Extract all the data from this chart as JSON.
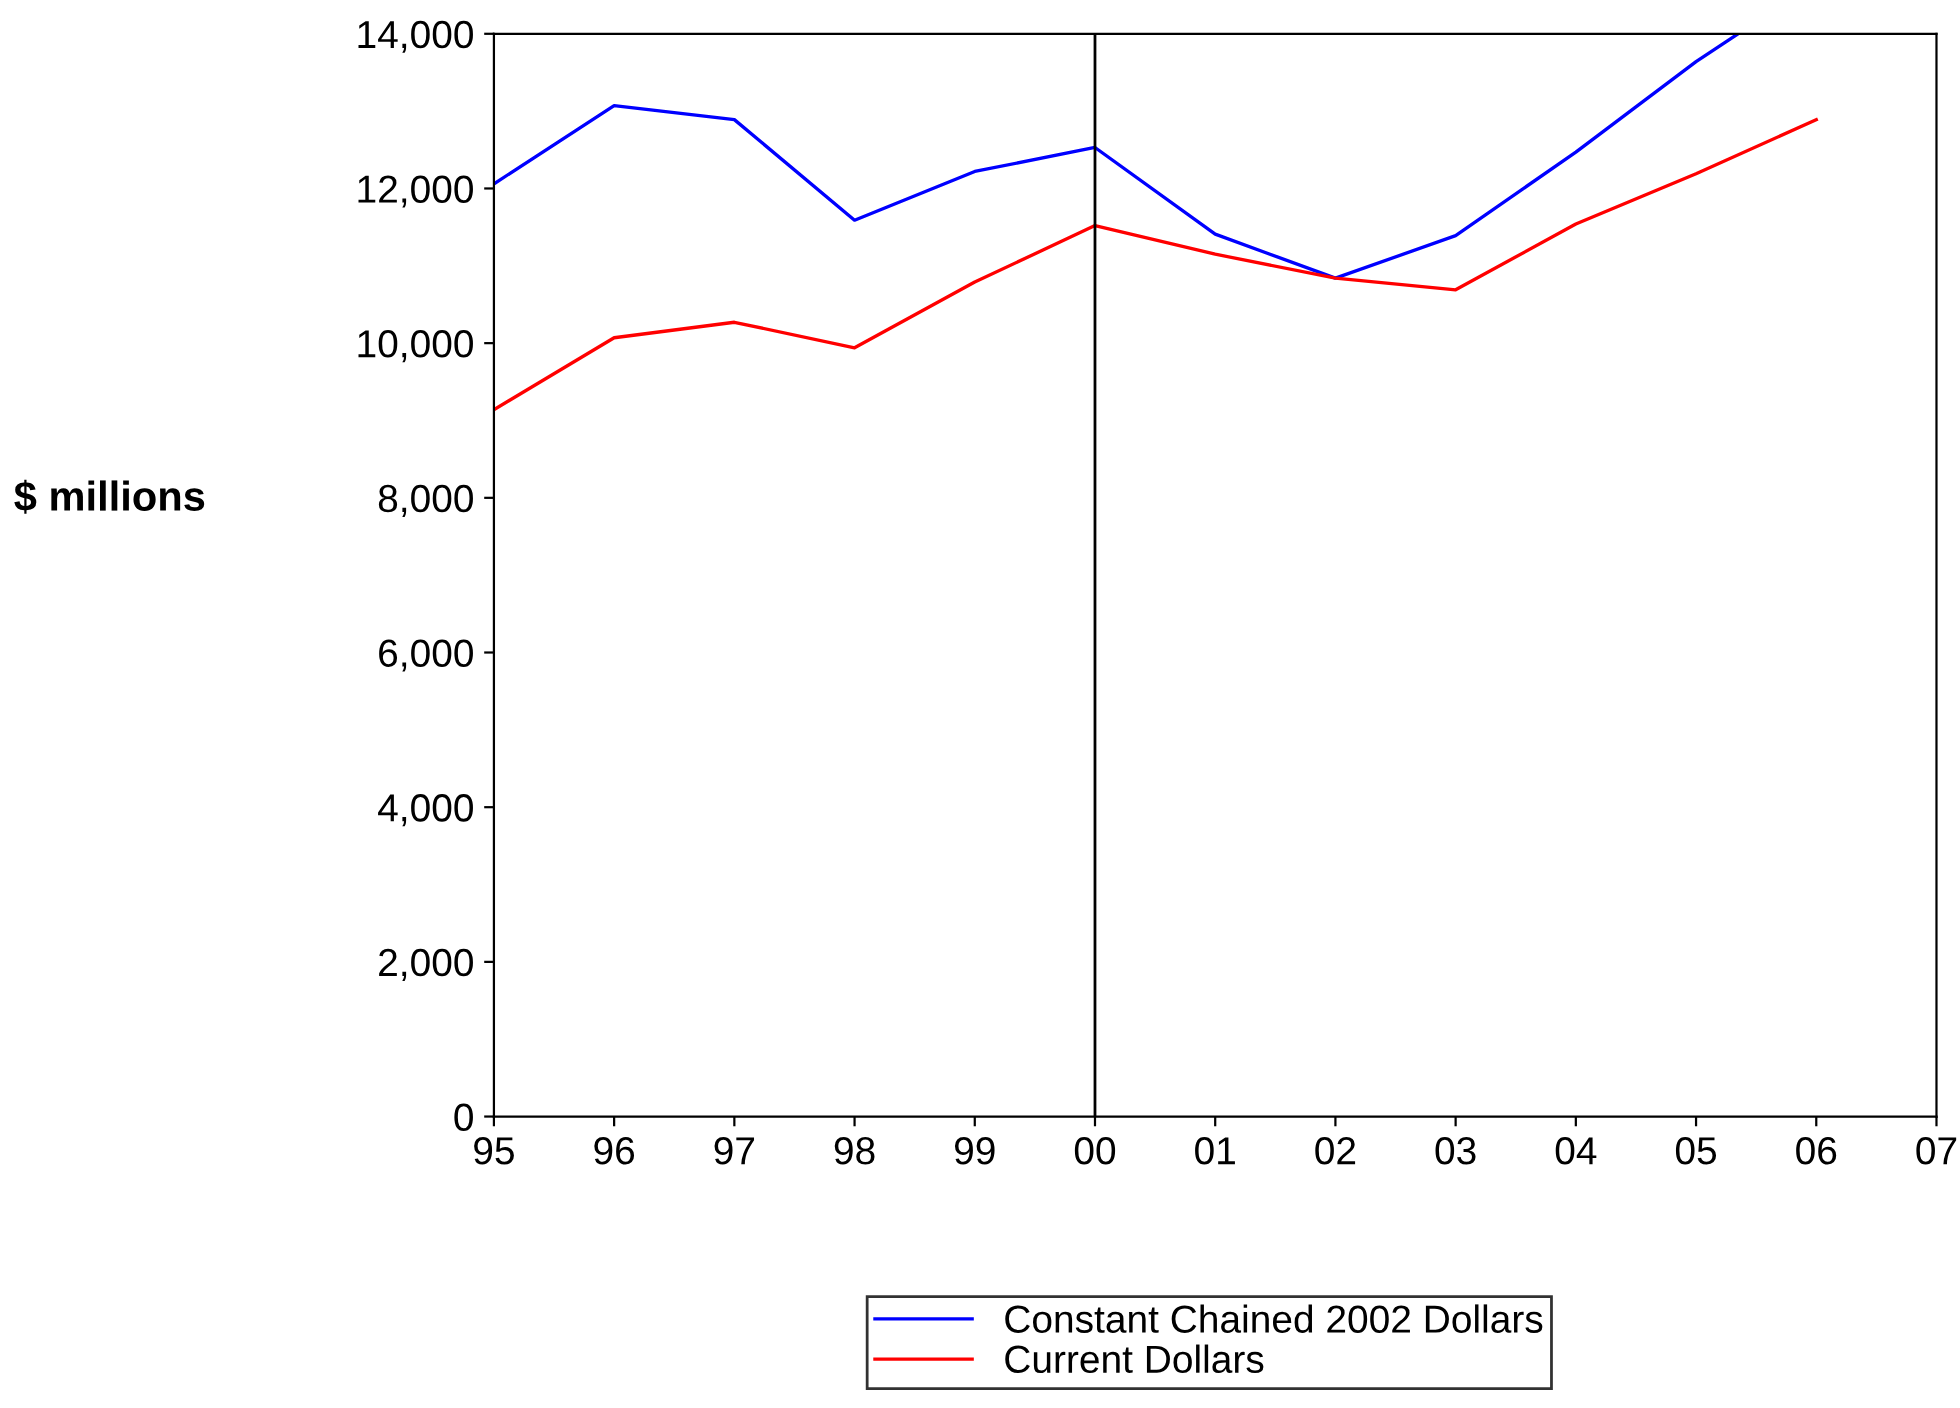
{
  "chart_data": {
    "type": "line",
    "ylabel": "$ millions",
    "x": [
      1995,
      1996,
      1997,
      1998,
      1999,
      2000,
      2001,
      2002,
      2003,
      2004,
      2005,
      2006
    ],
    "series": [
      {
        "name": "Constant Chained 2002 Dollars",
        "color": "#0000ff",
        "x": [
          1995,
          1996,
          1997,
          1998,
          1999,
          2000,
          2001,
          2002,
          2003,
          2004,
          2005,
          2005.35
        ],
        "values": [
          12060,
          13070,
          12890,
          11590,
          12220,
          12530,
          11410,
          10840,
          11390,
          12470,
          13640,
          14000
        ]
      },
      {
        "name": "Current Dollars",
        "color": "#ff0000",
        "values": [
          9140,
          10070,
          10270,
          9940,
          10790,
          11520,
          11150,
          10840,
          10690,
          11540,
          12190,
          12890
        ]
      }
    ],
    "xlim": [
      1995,
      2007
    ],
    "xticks": [
      {
        "value": 1995,
        "label": "95"
      },
      {
        "value": 1996,
        "label": "96"
      },
      {
        "value": 1997,
        "label": "97"
      },
      {
        "value": 1998,
        "label": "98"
      },
      {
        "value": 1999,
        "label": "99"
      },
      {
        "value": 2000,
        "label": "00"
      },
      {
        "value": 2001,
        "label": "01"
      },
      {
        "value": 2002,
        "label": "02"
      },
      {
        "value": 2003,
        "label": "03"
      },
      {
        "value": 2004,
        "label": "04"
      },
      {
        "value": 2005,
        "label": "05"
      },
      {
        "value": 2006,
        "label": "06"
      },
      {
        "value": 2007,
        "label": "07"
      }
    ],
    "ylim": [
      0,
      14000
    ],
    "yticks": [
      {
        "value": 0,
        "label": "0"
      },
      {
        "value": 2000,
        "label": "2,000"
      },
      {
        "value": 4000,
        "label": "4,000"
      },
      {
        "value": 6000,
        "label": "6,000"
      },
      {
        "value": 8000,
        "label": "8,000"
      },
      {
        "value": 10000,
        "label": "10,000"
      },
      {
        "value": 12000,
        "label": "12,000"
      },
      {
        "value": 14000,
        "label": "14,000"
      }
    ],
    "ref_lines": [
      {
        "axis": "x",
        "value": 2000,
        "color": "#000000"
      }
    ],
    "grid": false,
    "legend": "bottom",
    "line_style": "solid",
    "marker": "none"
  }
}
